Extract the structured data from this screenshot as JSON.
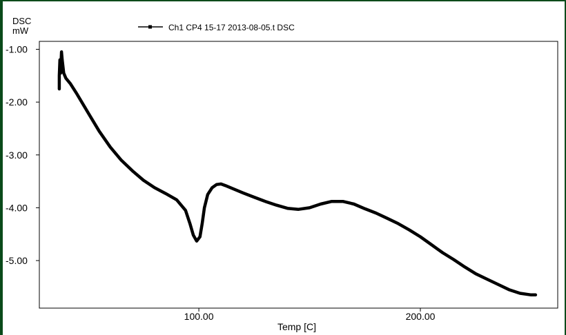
{
  "chart_data": {
    "type": "line",
    "title": "",
    "ylabel_line1": "DSC",
    "ylabel_line2": "mW",
    "xlabel": "Temp  [C]",
    "xlim": [
      28,
      262
    ],
    "ylim": [
      -5.9,
      -0.85
    ],
    "x_ticks": [
      100,
      200
    ],
    "x_tick_labels": [
      "100.00",
      "200.00"
    ],
    "y_ticks": [
      -1,
      -2,
      -3,
      -4,
      -5
    ],
    "y_tick_labels": [
      "-1.00",
      "-2.00",
      "-3.00",
      "-4.00",
      "-5.00"
    ],
    "grid": false,
    "legend_position": "top",
    "series": [
      {
        "name": "Ch1 CP4 15-17 2013-08-05.t  DSC",
        "color": "#000000",
        "x": [
          37,
          37,
          37.3,
          37.6,
          38,
          38.3,
          38.6,
          39,
          40,
          42,
          45,
          50,
          55,
          60,
          65,
          70,
          75,
          80,
          85,
          90,
          94,
          96,
          97.5,
          99,
          100.5,
          101.5,
          102.5,
          104,
          106,
          108,
          110,
          112,
          116,
          120,
          125,
          130,
          135,
          140,
          145,
          150,
          155,
          160,
          165,
          170,
          175,
          180,
          185,
          190,
          195,
          200,
          205,
          210,
          215,
          220,
          225,
          230,
          235,
          240,
          245,
          250,
          252
        ],
        "y": [
          -1.75,
          -1.5,
          -1.2,
          -1.45,
          -1.05,
          -1.2,
          -1.3,
          -1.45,
          -1.55,
          -1.65,
          -1.85,
          -2.2,
          -2.55,
          -2.85,
          -3.1,
          -3.3,
          -3.48,
          -3.62,
          -3.73,
          -3.85,
          -4.05,
          -4.3,
          -4.52,
          -4.63,
          -4.55,
          -4.3,
          -4.0,
          -3.75,
          -3.62,
          -3.56,
          -3.55,
          -3.58,
          -3.65,
          -3.72,
          -3.8,
          -3.88,
          -3.95,
          -4.01,
          -4.03,
          -4.0,
          -3.93,
          -3.88,
          -3.88,
          -3.93,
          -4.02,
          -4.1,
          -4.2,
          -4.3,
          -4.42,
          -4.55,
          -4.7,
          -4.85,
          -4.98,
          -5.12,
          -5.25,
          -5.35,
          -5.45,
          -5.55,
          -5.62,
          -5.65,
          -5.65
        ]
      }
    ]
  }
}
